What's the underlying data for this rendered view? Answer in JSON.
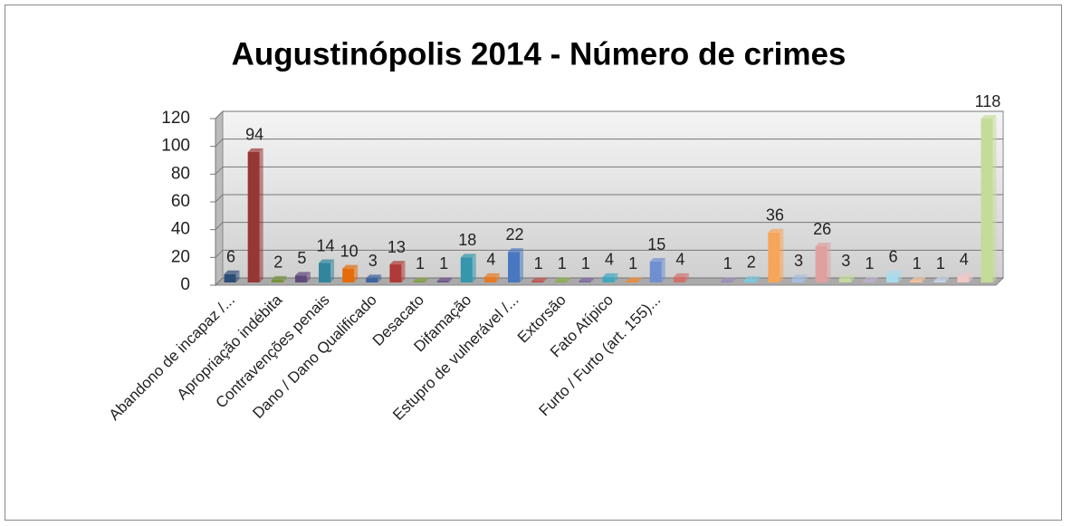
{
  "chart_data": {
    "type": "bar",
    "title": "Augustinópolis 2014 - Número de crimes",
    "categories": [
      "Abandono de incapaz /...",
      null,
      "Apropriação indébita",
      null,
      "Contravenções penais",
      null,
      "Dano / Dano Qualificado",
      null,
      "Desacato",
      null,
      "Difamação",
      null,
      "Estupro de vulnerável /...",
      null,
      "Extorsão",
      null,
      "Fato Atípico",
      null,
      "Furto / Furto (art. 155)...",
      null,
      null,
      null,
      null,
      null,
      null,
      null,
      null,
      null,
      null,
      null,
      null,
      null,
      null
    ],
    "values": [
      6,
      94,
      2,
      5,
      14,
      10,
      3,
      13,
      1,
      1,
      18,
      4,
      22,
      1,
      1,
      1,
      4,
      1,
      15,
      4,
      null,
      1,
      2,
      36,
      3,
      26,
      3,
      1,
      6,
      1,
      1,
      4,
      118
    ],
    "colors": [
      "#2c4d75",
      "#953735",
      "#77933c",
      "#604a7b",
      "#31859c",
      "#e46c0a",
      "#3a63a0",
      "#b03a37",
      "#7f9f3f",
      "#6a5288",
      "#3596ad",
      "#e87a25",
      "#4a78c0",
      "#c0504d",
      "#8aae48",
      "#7d67a0",
      "#41a8c0",
      "#f08a30",
      "#6f8fd0",
      "#d0706d",
      "#a5c26e",
      "#9a8bb8",
      "#7ccbe0",
      "#f7a55a",
      "#a8bde0",
      "#e0a0a0",
      "#c5dba0",
      "#bcb0d2",
      "#a8dcec",
      "#fac49a",
      "#c8d6ee",
      "#f0c8c8",
      "#c4dc98"
    ],
    "ylim": [
      0,
      120
    ],
    "yticks": [
      0,
      20,
      40,
      60,
      80,
      100,
      120
    ],
    "grid": true
  }
}
